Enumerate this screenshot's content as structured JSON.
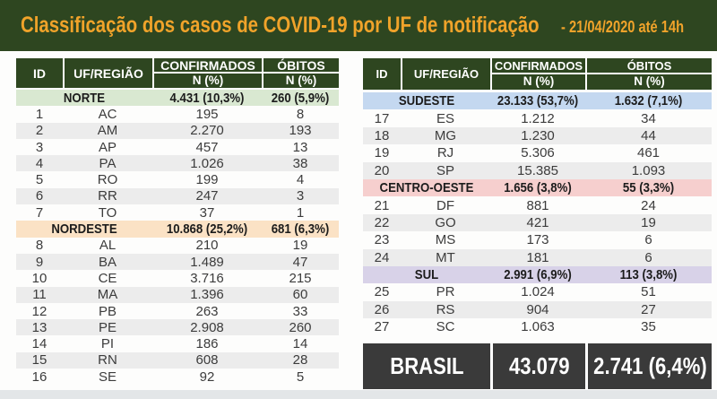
{
  "header": {
    "title": "Classificação dos casos de COVID-19 por UF de notificação",
    "date_note": "- 21/04/2020 até 14h"
  },
  "table_header": {
    "id": "ID",
    "uf": "UF/REGIÃO",
    "confirmados": "CONFIRMADOS",
    "obitos": "ÓBITOS",
    "sub": "N (%)"
  },
  "colors": {
    "bar_bg": "#2e4620",
    "title_text": "#f0a32a",
    "header_cell_bg": "#2e4620",
    "zebra_gray": "#ececec",
    "brasil_bg": "#3a3a3a",
    "bottom_strip": "#e3e6e8"
  },
  "chart_data": {
    "type": "table",
    "title": "Classificação dos casos de COVID-19 por UF de notificação",
    "as_of": "21/04/2020 até 14h",
    "columns": [
      "ID",
      "UF/REGIÃO",
      "CONFIRMADOS N (%)",
      "ÓBITOS N (%)"
    ],
    "left_regions": [
      {
        "name": "NORTE",
        "row_color": "#d9e8d1",
        "confirmados": "4.431 (10,3%)",
        "obitos": "260 (5,9%)",
        "states": [
          [
            1,
            "AC",
            "195",
            "8"
          ],
          [
            2,
            "AM",
            "2.270",
            "193"
          ],
          [
            3,
            "AP",
            "457",
            "13"
          ],
          [
            4,
            "PA",
            "1.026",
            "38"
          ],
          [
            5,
            "RO",
            "199",
            "4"
          ],
          [
            6,
            "RR",
            "247",
            "3"
          ],
          [
            7,
            "TO",
            "37",
            "1"
          ]
        ]
      },
      {
        "name": "NORDESTE",
        "row_color": "#fbe2c5",
        "confirmados": "10.868 (25,2%)",
        "obitos": "681 (6,3%)",
        "states": [
          [
            8,
            "AL",
            "210",
            "19"
          ],
          [
            9,
            "BA",
            "1.489",
            "47"
          ],
          [
            10,
            "CE",
            "3.716",
            "215"
          ],
          [
            11,
            "MA",
            "1.396",
            "60"
          ],
          [
            12,
            "PB",
            "263",
            "33"
          ],
          [
            13,
            "PE",
            "2.908",
            "260"
          ],
          [
            14,
            "PI",
            "186",
            "14"
          ],
          [
            15,
            "RN",
            "608",
            "28"
          ],
          [
            16,
            "SE",
            "92",
            "5"
          ]
        ]
      }
    ],
    "right_regions": [
      {
        "name": "SUDESTE",
        "row_color": "#c4d8f0",
        "confirmados": "23.133 (53,7%)",
        "obitos": "1.632 (7,1%)",
        "states": [
          [
            17,
            "ES",
            "1.212",
            "34"
          ],
          [
            18,
            "MG",
            "1.230",
            "44"
          ],
          [
            19,
            "RJ",
            "5.306",
            "461"
          ],
          [
            20,
            "SP",
            "15.385",
            "1.093"
          ]
        ]
      },
      {
        "name": "CENTRO-OESTE",
        "row_color": "#f6cfce",
        "confirmados": "1.656 (3,8%)",
        "obitos": "55 (3,3%)",
        "states": [
          [
            21,
            "DF",
            "881",
            "24"
          ],
          [
            22,
            "GO",
            "421",
            "19"
          ],
          [
            23,
            "MS",
            "173",
            "6"
          ],
          [
            24,
            "MT",
            "181",
            "6"
          ]
        ]
      },
      {
        "name": "SUL",
        "row_color": "#d8d2e8",
        "confirmados": "2.991 (6,9%)",
        "obitos": "113 (3,8%)",
        "states": [
          [
            25,
            "PR",
            "1.024",
            "51"
          ],
          [
            26,
            "RS",
            "904",
            "27"
          ],
          [
            27,
            "SC",
            "1.063",
            "35"
          ]
        ]
      }
    ],
    "total": {
      "name": "BRASIL",
      "confirmados": "43.079",
      "obitos": "2.741 (6,4%)"
    }
  }
}
